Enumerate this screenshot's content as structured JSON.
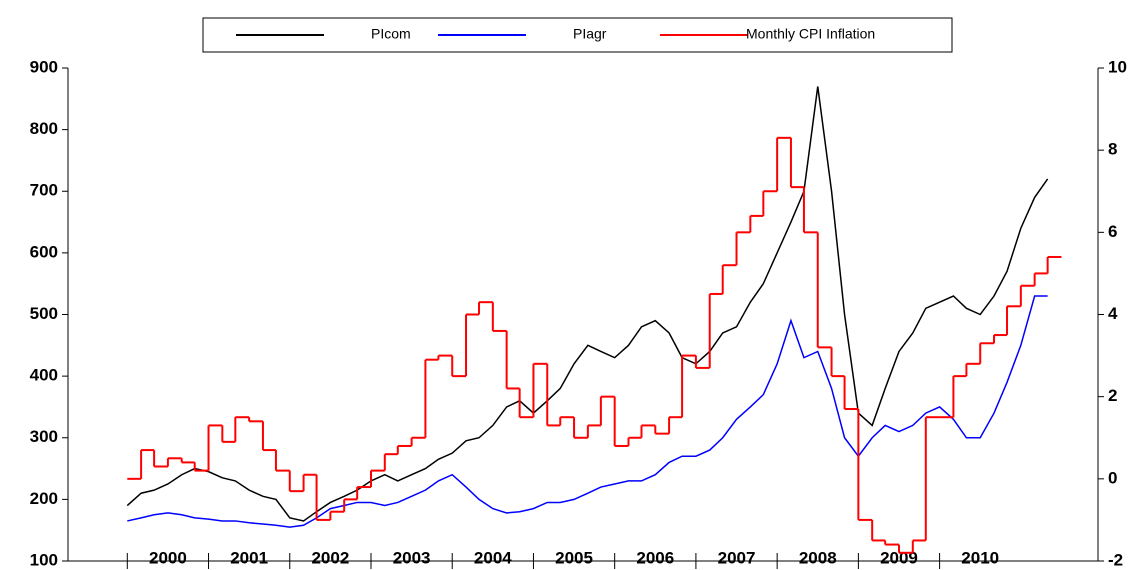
{
  "chart_data": {
    "type": "line",
    "x": [
      2000,
      2000.17,
      2000.33,
      2000.5,
      2000.67,
      2000.83,
      2001,
      2001.17,
      2001.33,
      2001.5,
      2001.67,
      2001.83,
      2002,
      2002.17,
      2002.33,
      2002.5,
      2002.67,
      2002.83,
      2003,
      2003.17,
      2003.33,
      2003.5,
      2003.67,
      2003.83,
      2004,
      2004.17,
      2004.33,
      2004.5,
      2004.67,
      2004.83,
      2005,
      2005.17,
      2005.33,
      2005.5,
      2005.67,
      2005.83,
      2006,
      2006.17,
      2006.33,
      2006.5,
      2006.67,
      2006.83,
      2007,
      2007.17,
      2007.33,
      2007.5,
      2007.67,
      2007.83,
      2008,
      2008.17,
      2008.33,
      2008.5,
      2008.67,
      2008.83,
      2009,
      2009.17,
      2009.33,
      2009.5,
      2009.67,
      2009.83,
      2010,
      2010.17,
      2010.33,
      2010.5,
      2010.67,
      2010.83,
      2011,
      2011.17,
      2011.33
    ],
    "series": [
      {
        "name": "PIcom",
        "color": "#000000",
        "step": false,
        "values": [
          190,
          210,
          215,
          225,
          240,
          250,
          245,
          235,
          230,
          215,
          205,
          200,
          170,
          165,
          180,
          195,
          205,
          215,
          230,
          240,
          230,
          240,
          250,
          265,
          275,
          295,
          300,
          320,
          350,
          360,
          340,
          360,
          380,
          420,
          450,
          440,
          430,
          450,
          480,
          490,
          470,
          430,
          420,
          440,
          470,
          480,
          520,
          550,
          600,
          650,
          700,
          870,
          700,
          500,
          340,
          320,
          380,
          440,
          470,
          510,
          520,
          530,
          510,
          500,
          530,
          570,
          640,
          690,
          720
        ]
      },
      {
        "name": "PIagr",
        "color": "#0000ff",
        "step": false,
        "values": [
          165,
          170,
          175,
          178,
          175,
          170,
          168,
          165,
          165,
          162,
          160,
          158,
          155,
          158,
          170,
          185,
          190,
          195,
          195,
          190,
          195,
          205,
          215,
          230,
          240,
          220,
          200,
          185,
          178,
          180,
          185,
          195,
          195,
          200,
          210,
          220,
          225,
          230,
          230,
          240,
          260,
          270,
          270,
          280,
          300,
          330,
          350,
          370,
          420,
          490,
          430,
          440,
          380,
          300,
          270,
          300,
          320,
          310,
          320,
          340,
          350,
          330,
          300,
          300,
          340,
          390,
          450,
          530,
          530
        ]
      },
      {
        "name": "Monthly CPI Inflation",
        "color": "#ff0000",
        "step": true,
        "axis": "y2",
        "values": [
          0,
          0.7,
          0.3,
          0.5,
          0.4,
          0.2,
          1.3,
          0.9,
          1.5,
          1.4,
          0.7,
          0.2,
          -0.3,
          0.1,
          -1.0,
          -0.8,
          -0.5,
          -0.2,
          0.2,
          0.6,
          0.8,
          1.0,
          2.9,
          3.0,
          2.5,
          4.0,
          4.3,
          3.6,
          2.2,
          1.5,
          2.8,
          1.3,
          1.5,
          1.0,
          1.3,
          2.0,
          0.8,
          1.0,
          1.3,
          1.1,
          1.5,
          3.0,
          2.7,
          4.5,
          5.2,
          6.0,
          6.4,
          7.0,
          8.3,
          7.1,
          6.0,
          3.2,
          2.5,
          1.7,
          -1.0,
          -1.5,
          -1.6,
          -1.8,
          -1.5,
          1.5,
          1.5,
          2.5,
          2.8,
          3.3,
          3.5,
          4.2,
          4.7,
          5.0,
          5.4
        ]
      }
    ],
    "xlim": [
      1999.27,
      2011.95
    ],
    "xticks": [
      {
        "value": 2000.5,
        "label": "2000"
      },
      {
        "value": 2001.5,
        "label": "2001"
      },
      {
        "value": 2002.5,
        "label": "2002"
      },
      {
        "value": 2003.5,
        "label": "2003"
      },
      {
        "value": 2004.5,
        "label": "2004"
      },
      {
        "value": 2005.5,
        "label": "2005"
      },
      {
        "value": 2006.5,
        "label": "2006"
      },
      {
        "value": 2007.5,
        "label": "2007"
      },
      {
        "value": 2008.5,
        "label": "2008"
      },
      {
        "value": 2009.5,
        "label": "2009"
      },
      {
        "value": 2010.5,
        "label": "2010"
      }
    ],
    "ylim": [
      100,
      900
    ],
    "yticks": [
      100,
      200,
      300,
      400,
      500,
      600,
      700,
      800,
      900
    ],
    "y2lim": [
      -2,
      10
    ],
    "y2ticks": [
      -2,
      0,
      2,
      4,
      6,
      8,
      10
    ],
    "legend": "top"
  }
}
